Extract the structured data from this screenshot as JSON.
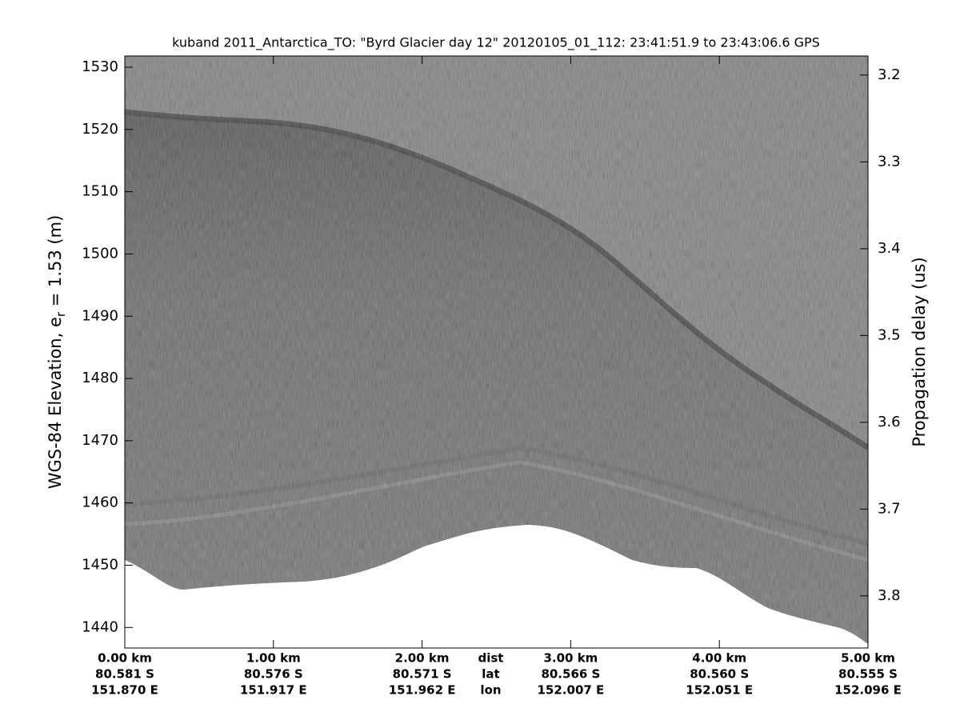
{
  "chart_data": {
    "type": "radargram",
    "title": "kuband 2011_Antarctica_TO: \"Byrd Glacier day 12\"  20120105_01_112: 23:41:51.9 to 23:43:06.6 GPS",
    "ylabel": {
      "text": "WGS-84 Elevation, e",
      "subscript": "r",
      "rest": " = 1.53 (m)"
    },
    "y2label": "Propagation delay (us)",
    "ylim": [
      1436.7,
      1531.8
    ],
    "yticks": [
      1440,
      1450,
      1460,
      1470,
      1480,
      1490,
      1500,
      1510,
      1520,
      1530
    ],
    "y2lim": [
      3.86,
      3.178
    ],
    "y2ticks": [
      3.2,
      3.3,
      3.4,
      3.5,
      3.6,
      3.7,
      3.8
    ],
    "xlim": [
      0,
      5
    ],
    "xticks": [
      {
        "value": 0,
        "label": "0.00 km"
      },
      {
        "value": 1,
        "label": "1.00 km"
      },
      {
        "value": 2,
        "label": "2.00 km"
      },
      {
        "value": 3,
        "label": "3.00 km"
      },
      {
        "value": 4,
        "label": "4.00 km"
      },
      {
        "value": 5,
        "label": "5.00 km"
      }
    ],
    "lat_labels": [
      "80.581 S",
      "80.576 S",
      "80.571 S",
      "80.566 S",
      "80.560 S",
      "80.555 S"
    ],
    "lon_labels": [
      "151.870 E",
      "151.917 E",
      "151.962 E",
      "152.007 E",
      "152.051 E",
      "152.096 E"
    ],
    "row_labels": [
      "dist",
      "lat",
      "lon"
    ],
    "grid": false
  }
}
